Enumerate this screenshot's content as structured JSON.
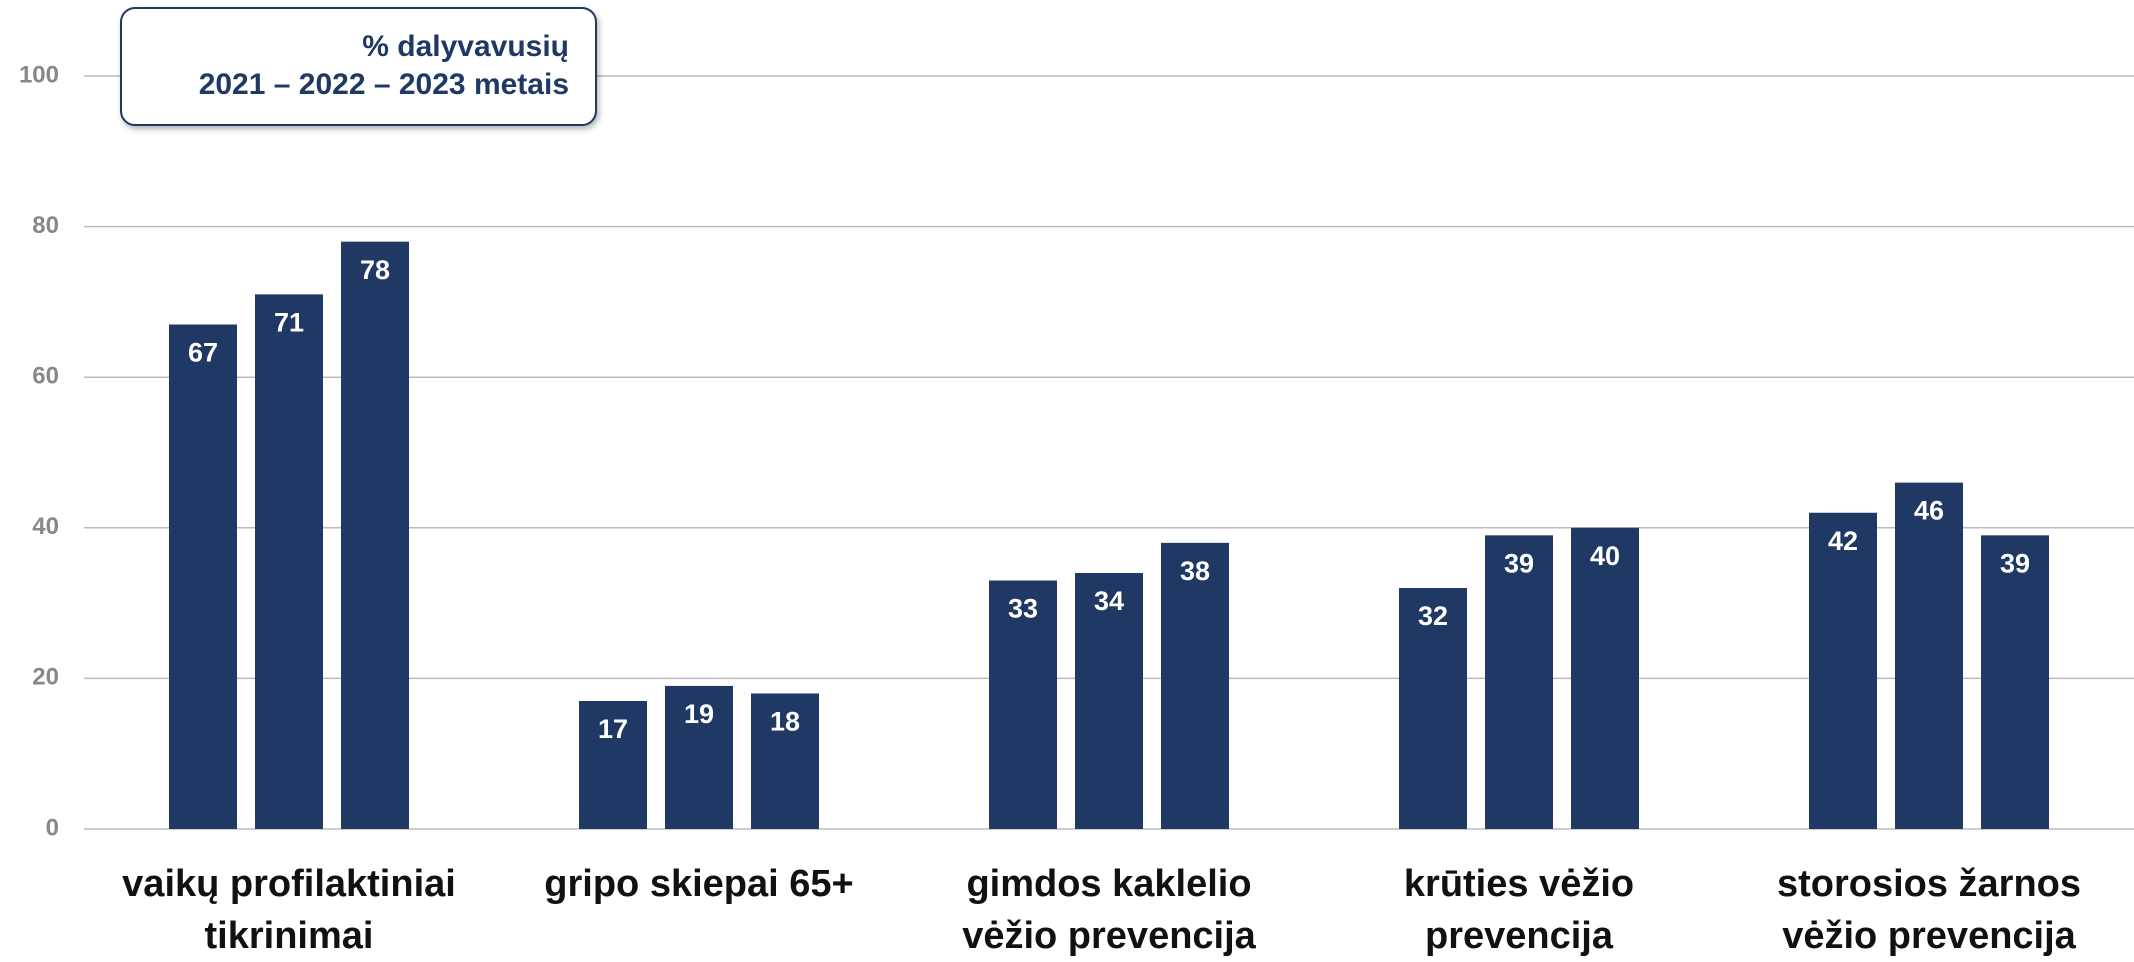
{
  "chart_data": {
    "type": "bar",
    "annotation": [
      "% dalyvavusių",
      "2021 – 2022 – 2023 metais"
    ],
    "categories": [
      "vaikų profilaktiniai tikrinimai",
      "gripo skiepai 65+",
      "gimdos kaklelio vėžio prevencija",
      "krūties vėžio prevencija",
      "storosios žarnos vėžio prevencija"
    ],
    "series": [
      {
        "color": "#1f3864",
        "values": [
          67,
          17,
          33,
          32,
          42
        ]
      },
      {
        "color": "#1f3864",
        "values": [
          71,
          19,
          34,
          39,
          46
        ]
      },
      {
        "color": "#1f3864",
        "values": [
          78,
          18,
          38,
          40,
          39
        ]
      }
    ],
    "ylim": [
      0,
      100
    ],
    "yticks": [
      0,
      20,
      40,
      60,
      80,
      100
    ],
    "grid": true
  }
}
